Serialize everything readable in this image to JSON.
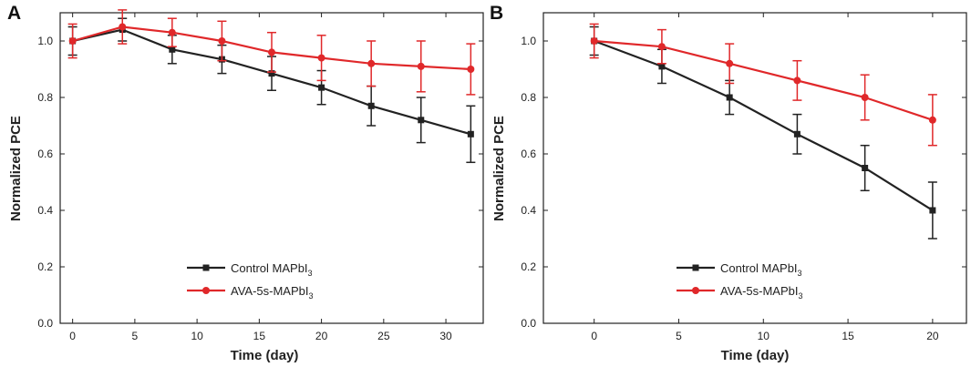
{
  "chart_data": [
    {
      "type": "line",
      "panel_label": "A",
      "xlabel": "Time (day)",
      "ylabel": "Normalized PCE",
      "xlim": [
        -1,
        33
      ],
      "ylim": [
        0.0,
        1.1
      ],
      "xticks": [
        "0",
        "5",
        "10",
        "15",
        "20",
        "25",
        "30"
      ],
      "yticks": [
        "0.0",
        "0.2",
        "0.4",
        "0.6",
        "0.8",
        "1.0"
      ],
      "legend_position": "lower-center",
      "series": [
        {
          "name": "Control MAPbI",
          "name_sub": "3",
          "color": "#222222",
          "marker": "square",
          "x": [
            0,
            4,
            8,
            12,
            16,
            20,
            24,
            28,
            32
          ],
          "y": [
            1.0,
            1.04,
            0.97,
            0.935,
            0.885,
            0.835,
            0.77,
            0.72,
            0.67
          ],
          "err": [
            0.05,
            0.04,
            0.05,
            0.05,
            0.06,
            0.06,
            0.07,
            0.08,
            0.1
          ]
        },
        {
          "name": "AVA-5s-MAPbI",
          "name_sub": "3",
          "color": "#e0282a",
          "marker": "circle",
          "x": [
            0,
            4,
            8,
            12,
            16,
            20,
            24,
            28,
            32
          ],
          "y": [
            1.0,
            1.05,
            1.03,
            1.0,
            0.96,
            0.94,
            0.92,
            0.91,
            0.9
          ],
          "err": [
            0.06,
            0.06,
            0.05,
            0.07,
            0.07,
            0.08,
            0.08,
            0.09,
            0.09
          ]
        }
      ]
    },
    {
      "type": "line",
      "panel_label": "B",
      "xlabel": "Time (day)",
      "ylabel": "Normalized PCE",
      "xlim": [
        -3,
        22
      ],
      "ylim": [
        0.0,
        1.1
      ],
      "xticks": [
        "0",
        "5",
        "10",
        "15",
        "20"
      ],
      "yticks": [
        "0.0",
        "0.2",
        "0.4",
        "0.6",
        "0.8",
        "1.0"
      ],
      "legend_position": "lower-center",
      "series": [
        {
          "name": "Control MAPbI",
          "name_sub": "3",
          "color": "#222222",
          "marker": "square",
          "x": [
            0,
            4,
            8,
            12,
            16,
            20
          ],
          "y": [
            1.0,
            0.91,
            0.8,
            0.67,
            0.55,
            0.4
          ],
          "err": [
            0.05,
            0.06,
            0.06,
            0.07,
            0.08,
            0.1
          ]
        },
        {
          "name": "AVA-5s-MAPbI",
          "name_sub": "3",
          "color": "#e0282a",
          "marker": "circle",
          "x": [
            0,
            4,
            8,
            12,
            16,
            20
          ],
          "y": [
            1.0,
            0.98,
            0.92,
            0.86,
            0.8,
            0.72
          ],
          "err": [
            0.06,
            0.06,
            0.07,
            0.07,
            0.08,
            0.09
          ]
        }
      ]
    }
  ]
}
